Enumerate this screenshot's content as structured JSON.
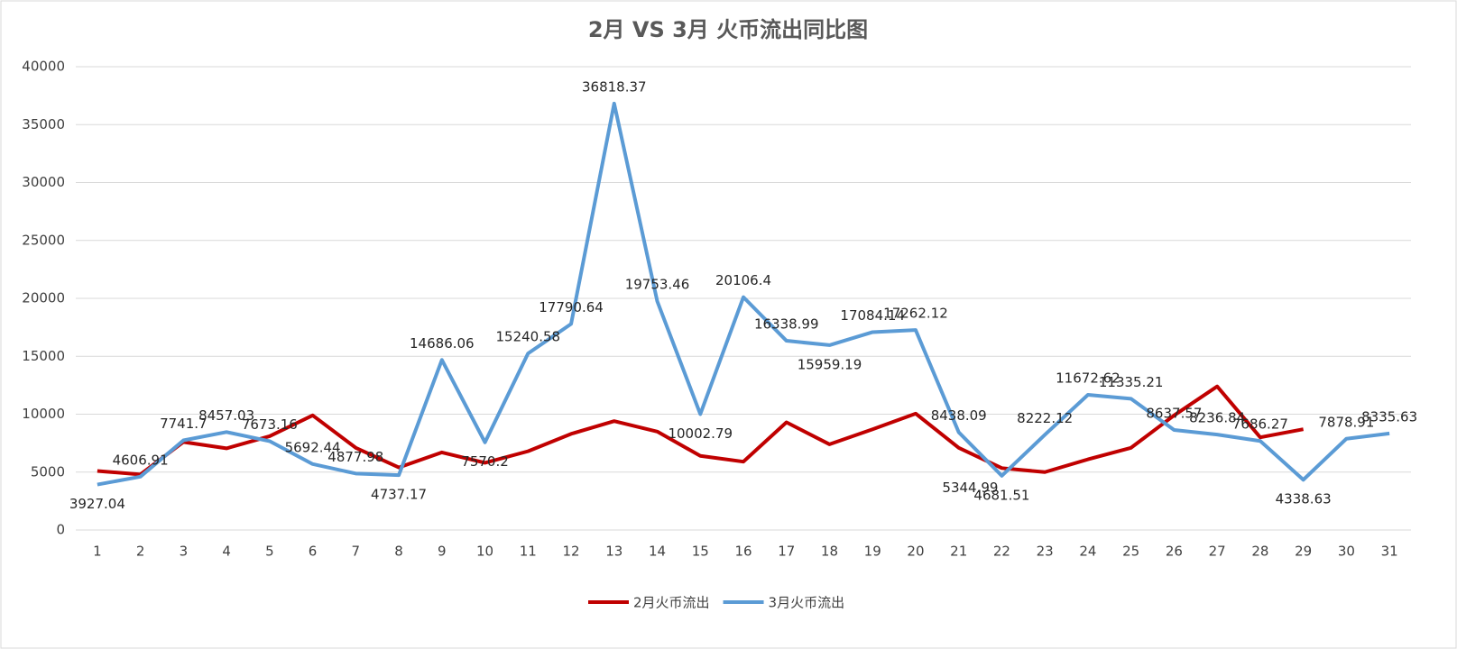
{
  "chart_data": {
    "type": "line",
    "title": "2月 VS 3月 火币流出同比图",
    "categories": [
      "1",
      "2",
      "3",
      "4",
      "5",
      "6",
      "7",
      "8",
      "9",
      "10",
      "11",
      "12",
      "13",
      "14",
      "15",
      "16",
      "17",
      "18",
      "19",
      "20",
      "21",
      "22",
      "23",
      "24",
      "25",
      "26",
      "27",
      "28",
      "29",
      "30",
      "31"
    ],
    "series": [
      {
        "name": "2月火币流出",
        "color": "#c00000",
        "values": [
          5100,
          4800,
          7600,
          7050,
          8100,
          9900,
          7100,
          5400,
          6700,
          5800,
          6800,
          8300,
          9400,
          8500,
          6400,
          5900,
          9300,
          7400,
          8700,
          10050,
          7100,
          5344.99,
          5000,
          6100,
          7100,
          9900,
          12400,
          8000,
          8700,
          null,
          null
        ],
        "value_labels": [
          null,
          null,
          null,
          null,
          null,
          null,
          null,
          null,
          null,
          null,
          null,
          null,
          null,
          null,
          null,
          null,
          null,
          null,
          null,
          null,
          null,
          "5344.99",
          null,
          null,
          null,
          null,
          null,
          null,
          null,
          null,
          null
        ]
      },
      {
        "name": "3月火币流出",
        "color": "#5b9bd5",
        "data_labels": true,
        "values": [
          3927.04,
          4606.91,
          7741.7,
          8457.03,
          7673.16,
          5692.44,
          4877.98,
          4737.17,
          14686.06,
          7570.2,
          15240.58,
          17790.64,
          36818.37,
          19753.46,
          10002.79,
          20106.4,
          16338.99,
          15959.19,
          17084.14,
          17262.12,
          8438.09,
          4681.51,
          8222.12,
          11672.62,
          11335.21,
          8637.57,
          8236.84,
          7686.27,
          4338.63,
          7878.91,
          8335.63
        ]
      }
    ],
    "ylim": [
      0,
      40000
    ],
    "yticks": [
      0,
      5000,
      10000,
      15000,
      20000,
      25000,
      30000,
      35000,
      40000
    ],
    "grid": true,
    "legend": "bottom"
  }
}
